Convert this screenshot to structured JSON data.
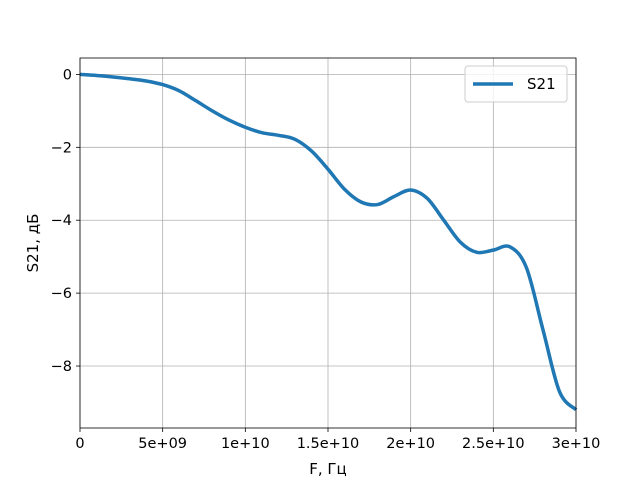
{
  "chart_data": {
    "type": "line",
    "title": "",
    "xlabel": "F, Гц",
    "ylabel": "S21, дБ",
    "xlim": [
      0,
      30000000000
    ],
    "ylim": [
      -9.7,
      0.45
    ],
    "grid": true,
    "legend_position": "top-right",
    "x_tick_values": [
      0,
      5000000000,
      10000000000,
      15000000000,
      20000000000,
      25000000000,
      30000000000
    ],
    "x_tick_labels": [
      "0",
      "5e+09",
      "1e+10",
      "1.5e+10",
      "2e+10",
      "2.5e+10",
      "3e+10"
    ],
    "y_tick_values": [
      0,
      -2,
      -4,
      -6,
      -8
    ],
    "y_tick_labels": [
      "0",
      "−2",
      "−4",
      "−6",
      "−8"
    ],
    "series": [
      {
        "name": "S21",
        "color": "#1f77b4",
        "x": [
          0,
          1000000000,
          2000000000,
          3000000000,
          4000000000,
          5000000000,
          6000000000,
          7000000000,
          8000000000,
          9000000000,
          10000000000,
          11000000000,
          12000000000,
          13000000000,
          14000000000,
          15000000000,
          16000000000,
          17000000000,
          18000000000,
          19000000000,
          20000000000,
          21000000000,
          22000000000,
          23000000000,
          24000000000,
          25000000000,
          26000000000,
          27000000000,
          28000000000,
          29000000000,
          30000000000
        ],
        "y": [
          0,
          -0.03,
          -0.07,
          -0.12,
          -0.18,
          -0.28,
          -0.45,
          -0.72,
          -1.0,
          -1.25,
          -1.45,
          -1.6,
          -1.67,
          -1.78,
          -2.1,
          -2.6,
          -3.15,
          -3.5,
          -3.57,
          -3.35,
          -3.17,
          -3.4,
          -4.0,
          -4.6,
          -4.88,
          -4.82,
          -4.73,
          -5.3,
          -7.0,
          -8.7,
          -9.2
        ]
      }
    ]
  }
}
